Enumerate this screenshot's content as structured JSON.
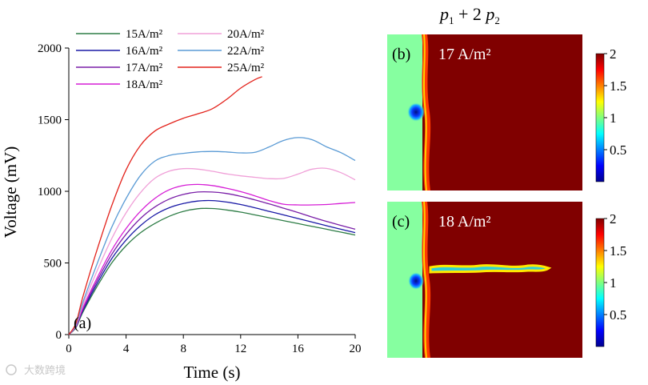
{
  "chart_data": [
    {
      "type": "line",
      "panel_label": "(a)",
      "xlabel": "Time (s)",
      "ylabel": "Voltage (mV)",
      "xlim": [
        0,
        20
      ],
      "ylim": [
        0,
        2000
      ],
      "xticks": [
        0,
        4,
        8,
        12,
        16,
        20
      ],
      "yticks": [
        0,
        500,
        1000,
        1500,
        2000
      ],
      "series": [
        {
          "name": "15A/m²",
          "color": "#2e7d46",
          "x": [
            0,
            0.5,
            1,
            2,
            3,
            4,
            5,
            6,
            7,
            8,
            9,
            10,
            11,
            12,
            13,
            14,
            15,
            16,
            17,
            18,
            19,
            20
          ],
          "y": [
            0,
            50,
            160,
            340,
            500,
            620,
            710,
            775,
            825,
            860,
            878,
            880,
            870,
            855,
            835,
            815,
            795,
            775,
            755,
            735,
            715,
            695
          ]
        },
        {
          "name": "16A/m²",
          "color": "#1a1aa6",
          "x": [
            0,
            0.5,
            1,
            2,
            3,
            4,
            5,
            6,
            7,
            8,
            9,
            10,
            11,
            12,
            13,
            14,
            15,
            16,
            17,
            18,
            19,
            20
          ],
          "y": [
            0,
            55,
            170,
            360,
            530,
            660,
            760,
            835,
            885,
            915,
            932,
            935,
            925,
            908,
            885,
            860,
            835,
            810,
            785,
            760,
            735,
            712
          ]
        },
        {
          "name": "17A/m²",
          "color": "#7a1fa8",
          "x": [
            0,
            0.5,
            1,
            2,
            3,
            4,
            5,
            6,
            7,
            8,
            9,
            10,
            11,
            12,
            13,
            14,
            15,
            16,
            17,
            18,
            19,
            20
          ],
          "y": [
            0,
            58,
            180,
            380,
            560,
            700,
            810,
            890,
            945,
            978,
            995,
            995,
            985,
            965,
            940,
            912,
            882,
            852,
            820,
            790,
            762,
            735
          ]
        },
        {
          "name": "18A/m²",
          "color": "#d61ed6",
          "x": [
            0,
            0.5,
            1,
            2,
            3,
            4,
            5,
            6,
            7,
            8,
            9,
            10,
            11,
            12,
            13,
            14,
            15,
            16,
            17,
            18,
            19,
            20
          ],
          "y": [
            0,
            60,
            190,
            400,
            590,
            740,
            860,
            950,
            1010,
            1040,
            1048,
            1040,
            1022,
            998,
            968,
            935,
            910,
            905,
            905,
            908,
            915,
            922
          ]
        },
        {
          "name": "20A/m²",
          "color": "#f0a0d8",
          "x": [
            0,
            0.5,
            1,
            2,
            3,
            4,
            5,
            6,
            7,
            8,
            9,
            10,
            11,
            12,
            13,
            14,
            15,
            16,
            17,
            18,
            19,
            20
          ],
          "y": [
            0,
            65,
            210,
            450,
            670,
            850,
            990,
            1090,
            1140,
            1158,
            1155,
            1140,
            1122,
            1108,
            1098,
            1088,
            1090,
            1120,
            1155,
            1160,
            1130,
            1080
          ]
        },
        {
          "name": "22A/m²",
          "color": "#5b9bd5",
          "x": [
            0,
            0.5,
            1,
            2,
            3,
            4,
            5,
            6,
            7,
            8,
            9,
            10,
            11,
            12,
            13,
            14,
            15,
            16,
            17,
            18,
            19,
            20
          ],
          "y": [
            0,
            70,
            230,
            500,
            750,
            950,
            1110,
            1210,
            1250,
            1265,
            1275,
            1278,
            1275,
            1268,
            1272,
            1310,
            1355,
            1375,
            1360,
            1310,
            1270,
            1215
          ]
        },
        {
          "name": "25A/m²",
          "color": "#e3231c",
          "x": [
            0,
            0.5,
            1,
            2,
            3,
            4,
            5,
            6,
            7,
            8,
            9,
            10,
            11,
            12,
            13,
            13.5
          ],
          "y": [
            0,
            80,
            270,
            600,
            900,
            1150,
            1320,
            1420,
            1470,
            1510,
            1540,
            1575,
            1640,
            1720,
            1780,
            1800
          ]
        }
      ]
    },
    {
      "type": "heatmap",
      "panel_label": "(b)",
      "title": "17 A/m²",
      "colorbar_ticks": [
        "2",
        "1.5",
        "1",
        "0.5"
      ],
      "colorbar_range": [
        0,
        2
      ]
    },
    {
      "type": "heatmap",
      "panel_label": "(c)",
      "title": "18 A/m²",
      "colorbar_ticks": [
        "2",
        "1.5",
        "1",
        "0.5"
      ],
      "colorbar_range": [
        0,
        2
      ]
    }
  ],
  "figure_title": {
    "p1": "p",
    "sub1": "1",
    "op": " + 2 ",
    "p2": "p",
    "sub2": "2"
  },
  "watermark": "大数跨境"
}
